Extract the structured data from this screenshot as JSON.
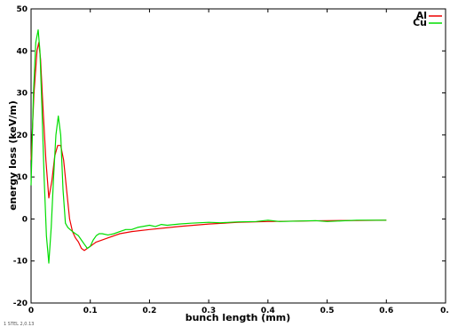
{
  "chart_data": {
    "type": "line",
    "title": "",
    "xlabel": "bunch length (mm)",
    "ylabel": "energy loss (keV/m)",
    "xlim": [
      0,
      0.7
    ],
    "ylim": [
      -20,
      50
    ],
    "x_ticks": [
      {
        "value": 0,
        "label": "0"
      },
      {
        "value": 0.1,
        "label": "0.1"
      },
      {
        "value": 0.2,
        "label": "0.2"
      },
      {
        "value": 0.3,
        "label": "0.3"
      },
      {
        "value": 0.4,
        "label": "0.4"
      },
      {
        "value": 0.5,
        "label": "0.5"
      },
      {
        "value": 0.6,
        "label": "0.6"
      },
      {
        "value": 0.7,
        "label": "0."
      }
    ],
    "y_ticks": [
      {
        "value": -20,
        "label": "-20"
      },
      {
        "value": -10,
        "label": "-10"
      },
      {
        "value": 0,
        "label": "0"
      },
      {
        "value": 10,
        "label": "10"
      },
      {
        "value": 20,
        "label": "20"
      },
      {
        "value": 30,
        "label": "30"
      },
      {
        "value": 40,
        "label": "40"
      },
      {
        "value": 50,
        "label": "50"
      }
    ],
    "grid": false,
    "legend_position": "top-right",
    "series": [
      {
        "name": "Al",
        "color": "#ee0000",
        "x": [
          0.0,
          0.005,
          0.01,
          0.013,
          0.016,
          0.02,
          0.025,
          0.03,
          0.035,
          0.04,
          0.045,
          0.05,
          0.055,
          0.06,
          0.065,
          0.07,
          0.075,
          0.08,
          0.085,
          0.09,
          0.095,
          0.1,
          0.105,
          0.11,
          0.12,
          0.13,
          0.14,
          0.15,
          0.17,
          0.2,
          0.25,
          0.3,
          0.35,
          0.4,
          0.45,
          0.5,
          0.55,
          0.6
        ],
        "y": [
          14,
          30,
          40,
          42,
          38,
          27,
          14,
          5,
          9,
          15,
          17.5,
          17.5,
          14,
          7,
          0,
          -3,
          -4.5,
          -5.5,
          -7,
          -7.5,
          -7,
          -6.5,
          -6,
          -5.5,
          -5,
          -4.5,
          -4,
          -3.5,
          -3,
          -2.5,
          -1.8,
          -1.2,
          -0.8,
          -0.6,
          -0.5,
          -0.4,
          -0.35,
          -0.3
        ]
      },
      {
        "name": "Cu",
        "color": "#00dd00",
        "x": [
          0.0,
          0.004,
          0.008,
          0.012,
          0.015,
          0.018,
          0.022,
          0.026,
          0.03,
          0.034,
          0.038,
          0.042,
          0.046,
          0.05,
          0.054,
          0.058,
          0.062,
          0.066,
          0.07,
          0.075,
          0.08,
          0.085,
          0.09,
          0.095,
          0.1,
          0.105,
          0.11,
          0.115,
          0.12,
          0.13,
          0.14,
          0.15,
          0.16,
          0.17,
          0.18,
          0.2,
          0.21,
          0.22,
          0.23,
          0.25,
          0.27,
          0.3,
          0.32,
          0.35,
          0.38,
          0.4,
          0.42,
          0.45,
          0.48,
          0.5,
          0.55,
          0.6
        ],
        "y": [
          8,
          30,
          42,
          45,
          40,
          28,
          10,
          -4,
          -10.5,
          -2,
          10,
          20,
          24.5,
          20,
          7,
          -1,
          -2,
          -2.5,
          -3,
          -3.5,
          -4,
          -5,
          -6,
          -7,
          -6.5,
          -5,
          -4,
          -3.5,
          -3.5,
          -3.8,
          -3.5,
          -3,
          -2.5,
          -2.5,
          -2,
          -1.5,
          -1.8,
          -1.3,
          -1.5,
          -1.2,
          -1.0,
          -0.8,
          -0.9,
          -0.7,
          -0.6,
          -0.3,
          -0.6,
          -0.5,
          -0.4,
          -0.6,
          -0.3,
          -0.3
        ]
      }
    ]
  },
  "footer_text": "1 STEL 2,0.13"
}
